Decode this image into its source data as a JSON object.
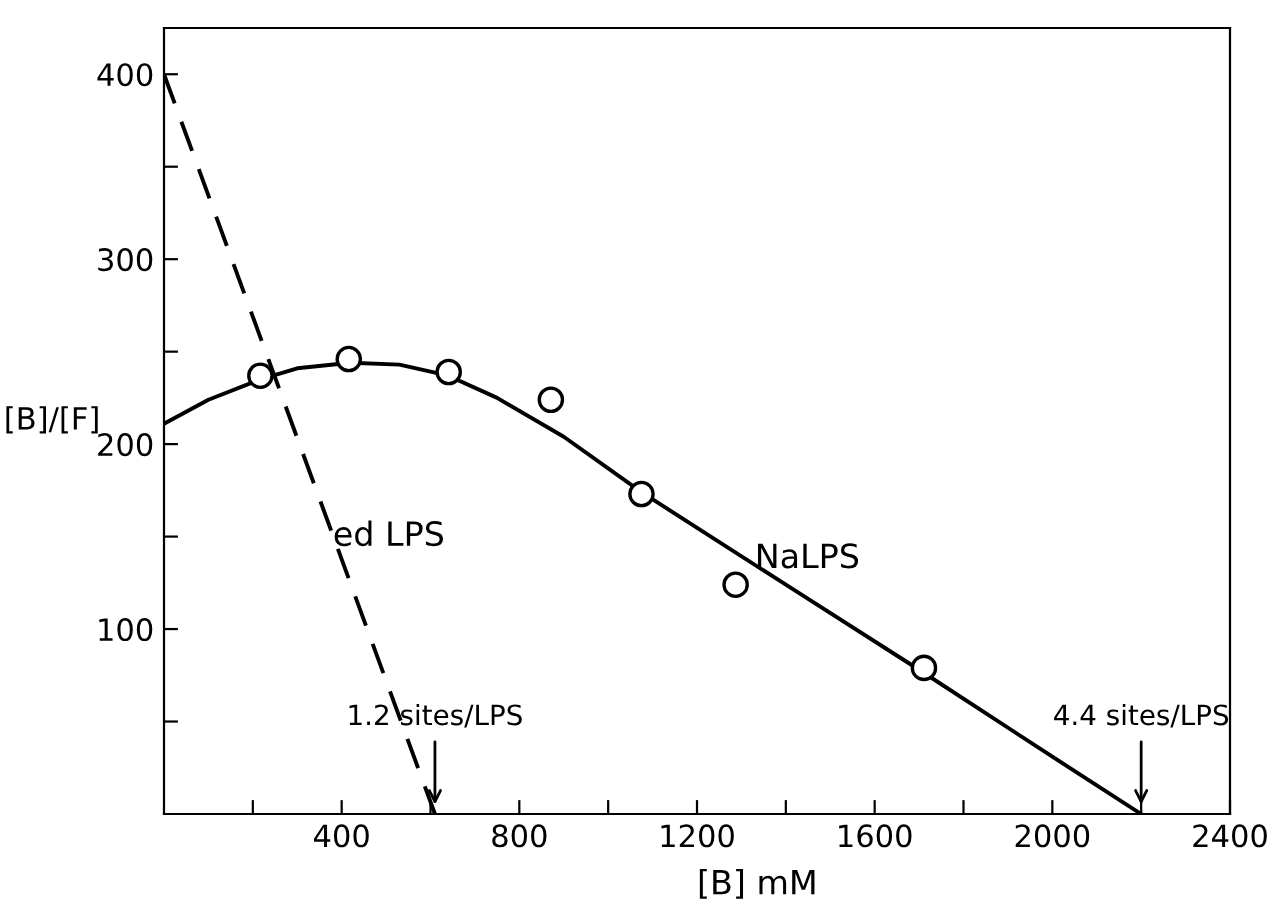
{
  "chart_data": {
    "type": "line",
    "xlabel": "[B] mM",
    "ylabel": "[B]/[F]",
    "xlim": [
      0,
      2400
    ],
    "ylim": [
      0,
      425
    ],
    "xticks": [
      {
        "value": 200,
        "label": null
      },
      400,
      {
        "value": 600,
        "label": null
      },
      800,
      {
        "value": 1000,
        "label": null
      },
      1200,
      {
        "value": 1400,
        "label": null
      },
      1600,
      {
        "value": 1800,
        "label": null
      },
      2000,
      {
        "value": 2200,
        "label": null
      },
      2400
    ],
    "yticks": [
      {
        "value": 50,
        "label": null
      },
      100,
      {
        "value": 150,
        "label": null
      },
      200,
      {
        "value": 250,
        "label": null
      },
      300,
      {
        "value": 350,
        "label": null
      },
      400
    ],
    "grid": false,
    "series": [
      {
        "type": "scatter",
        "color": "#000000",
        "marker": "circle",
        "x": [
          217,
          416,
          641,
          871,
          1075,
          1287,
          1711
        ],
        "values": [
          237,
          246,
          239,
          224,
          173,
          124,
          79
        ]
      },
      {
        "color": "#000000",
        "line_style": "solid",
        "marker": "none",
        "x": [
          0,
          100,
          217,
          300,
          420,
          530,
          640,
          750,
          900,
          1075,
          1400,
          1700,
          2000,
          2200
        ],
        "values": [
          211,
          224,
          235,
          241,
          244,
          243,
          237,
          225,
          204,
          174,
          124,
          78,
          31,
          0
        ]
      },
      {
        "color": "#000000",
        "line_style": "dashed",
        "marker": "none",
        "x": [
          0,
          610
        ],
        "values": [
          400,
          0
        ]
      }
    ],
    "annotations": [
      {
        "text": "ed LPS",
        "x": 380,
        "y": 150
      },
      {
        "text": "NaLPS",
        "x": 1330,
        "y": 138
      },
      {
        "text": "1.2 sites/LPS",
        "x": 610,
        "y": 0
      },
      {
        "text": "4.4 sites/LPS",
        "x": 2200,
        "y": 0
      }
    ]
  }
}
